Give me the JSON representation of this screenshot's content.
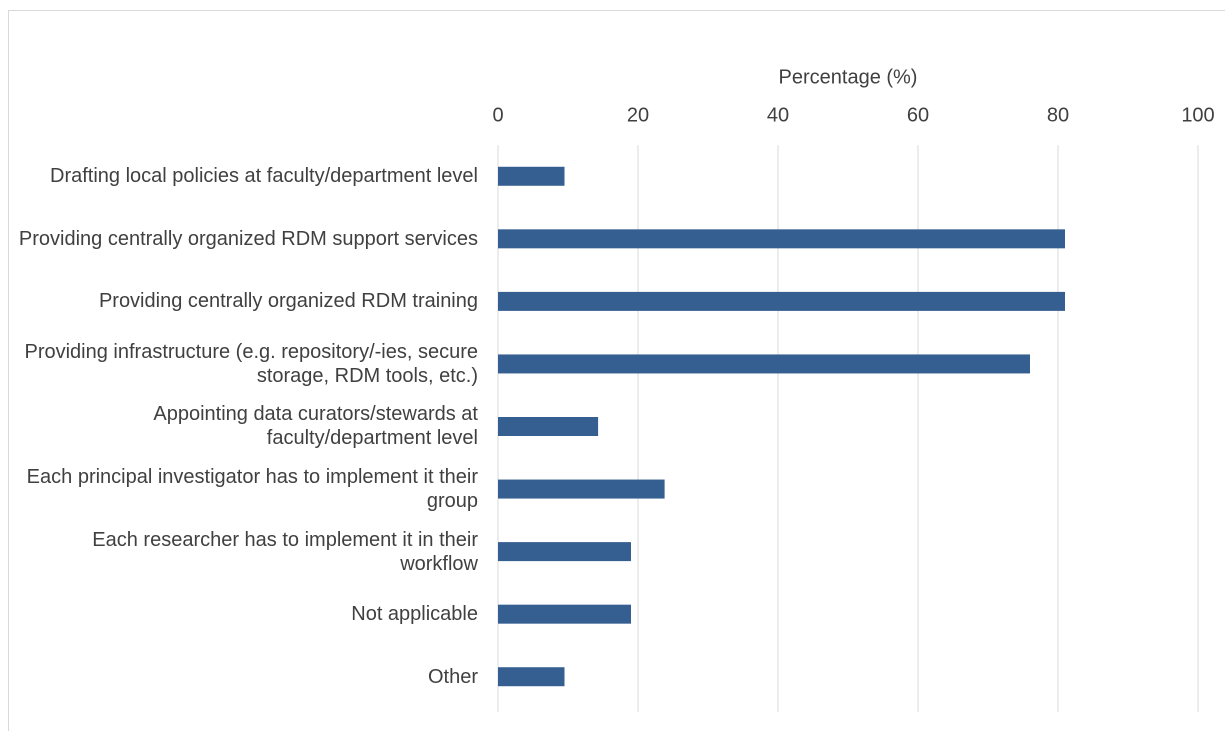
{
  "chart_data": {
    "type": "bar",
    "orientation": "horizontal",
    "x_label": "Percentage (%)",
    "categories": [
      "Drafting local policies at faculty/department level",
      "Providing centrally organized RDM support services",
      "Providing centrally organized RDM training",
      "Providing infrastructure (e.g. repository/-ies, secure storage, RDM tools, etc.)",
      "Appointing data curators/stewards at faculty/department level",
      "Each principal investigator has to implement it their group",
      "Each researcher has to implement it in their workflow",
      "Not applicable",
      "Other"
    ],
    "values": [
      9.5,
      81,
      81,
      76,
      14.3,
      23.8,
      19,
      19,
      9.5
    ],
    "color": "#355f91",
    "xlim": [
      0,
      100
    ],
    "xticks": [
      0,
      20,
      40,
      60,
      80,
      100
    ],
    "grid": true
  }
}
